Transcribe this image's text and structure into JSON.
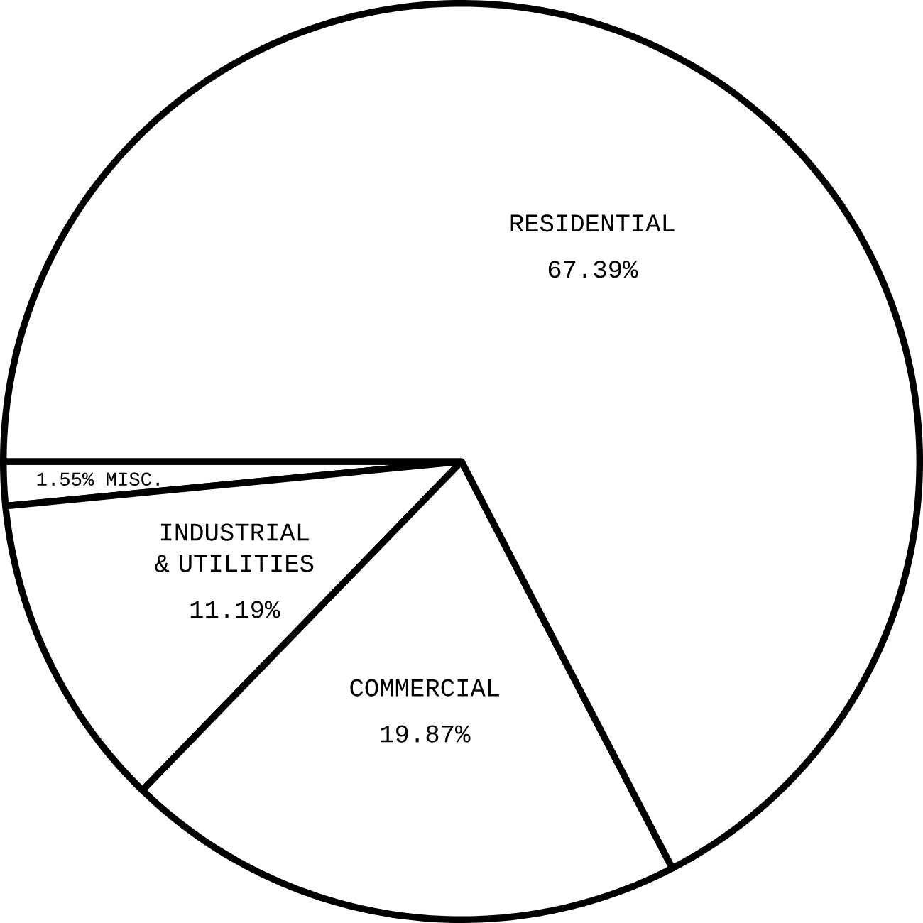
{
  "chart_data": {
    "type": "pie",
    "categories": [
      "1.55% MISC.",
      "INDUSTRIAL & UTILITIES",
      "COMMERCIAL",
      "RESIDENTIAL"
    ],
    "values": [
      1.55,
      11.19,
      19.87,
      67.39
    ],
    "value_labels": [
      null,
      "11.19%",
      "19.87%",
      "67.39%"
    ],
    "colors": [
      "#ffffff",
      "#ffffff",
      "#ffffff",
      "#ffffff"
    ]
  }
}
